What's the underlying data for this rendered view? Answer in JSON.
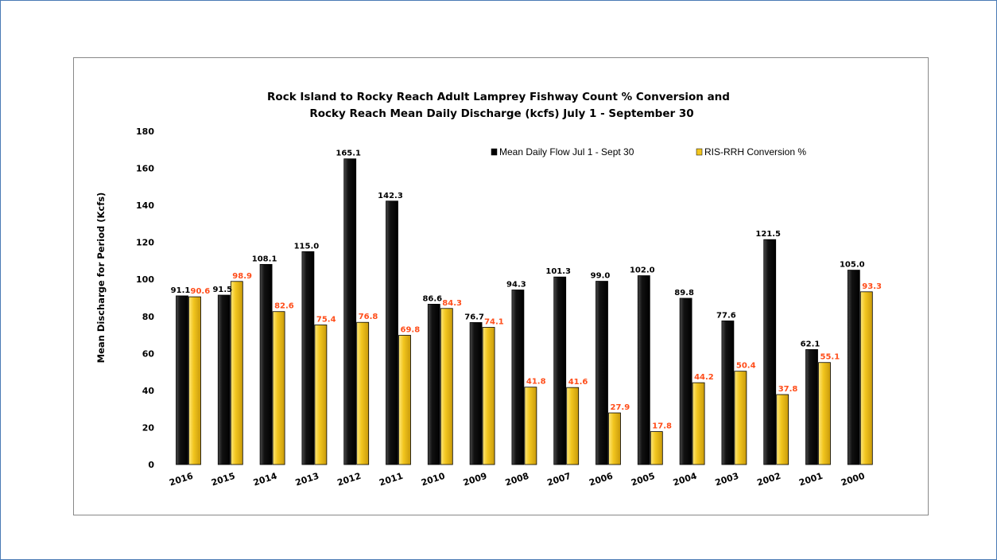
{
  "chart_data": {
    "type": "bar",
    "title_lines": [
      "Rock Island to Rocky Reach Adult Lamprey Fishway Count % Conversion and",
      "Rocky Reach Mean Daily Discharge (kcfs) July 1 - September 30"
    ],
    "xlabel": "",
    "ylabel": "Mean Discharge for Period (Kcfs)",
    "ylim": [
      0,
      180
    ],
    "yticks": [
      0,
      20,
      40,
      60,
      80,
      100,
      120,
      140,
      160,
      180
    ],
    "categories": [
      "2016",
      "2015",
      "2014",
      "2013",
      "2012",
      "2011",
      "2010",
      "2009",
      "2008",
      "2007",
      "2006",
      "2005",
      "2004",
      "2003",
      "2002",
      "2001",
      "2000"
    ],
    "series": [
      {
        "name": "Mean Daily Flow Jul 1 - Sept 30",
        "values": [
          91.1,
          91.5,
          108.1,
          115.0,
          165.1,
          142.3,
          86.6,
          76.7,
          94.3,
          101.3,
          99.0,
          102.0,
          89.8,
          77.6,
          121.5,
          62.1,
          105.0
        ],
        "labels": [
          "91.1",
          "91.5",
          "108.1",
          "115.0",
          "165.1",
          "142.3",
          "86.6",
          "76.7",
          "94.3",
          "101.3",
          "99.0",
          "102.0",
          "89.8",
          "77.6",
          "121.5",
          "62.1",
          "105.0"
        ],
        "color": "#0a0a0a",
        "label_color": "#000000"
      },
      {
        "name": "RIS-RRH Conversion %",
        "values": [
          90.6,
          98.9,
          82.6,
          75.4,
          76.8,
          69.8,
          84.3,
          74.1,
          41.8,
          41.6,
          27.9,
          17.8,
          44.2,
          50.4,
          37.8,
          55.1,
          93.3
        ],
        "labels": [
          "90.6",
          "98.9",
          "82.6",
          "75.4",
          "76.8",
          "69.8",
          "84.3",
          "74.1",
          "41.8",
          "41.6",
          "27.9",
          "17.8",
          "44.2",
          "50.4",
          "37.8",
          "55.1",
          "93.3"
        ],
        "color": "#f2c61f",
        "label_color": "#ff4d1a"
      }
    ],
    "legend_position": "top-right",
    "grid": false
  }
}
